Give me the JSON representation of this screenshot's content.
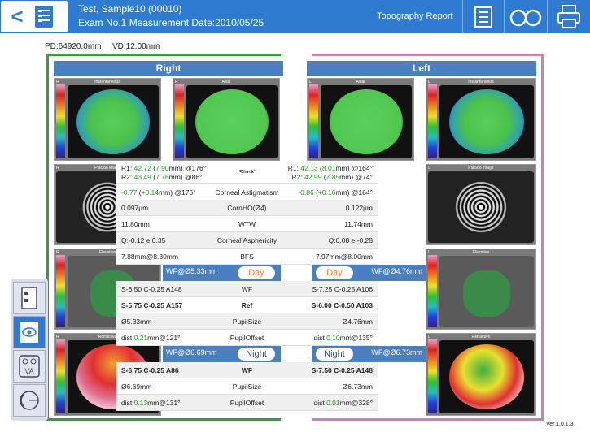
{
  "header": {
    "title_line1": "Test, Sample10 (00010)",
    "title_line2": "Exam No.1 Measurement Date:2010/05/25",
    "report_label": "Topography Report",
    "back_icon": "back-arrow",
    "toolbar_icons": [
      "print-report-icon",
      "glasses-icon",
      "printer-icon"
    ]
  },
  "info": {
    "pd": "PD:64920.0mm",
    "vd": "VD:12.00mm"
  },
  "bands": {
    "right": "Right",
    "left": "Left"
  },
  "maps": {
    "right_instant": {
      "label": "Instantaneous",
      "tag": "R"
    },
    "right_axial": {
      "label": "Axial",
      "tag": "R"
    },
    "left_axial": {
      "label": "Axial",
      "tag": "L"
    },
    "left_instant": {
      "label": "Instantaneous",
      "tag": "L"
    },
    "right_placido": {
      "label": "Placido image",
      "tag": "R"
    },
    "left_placido": {
      "label": "Placido image",
      "tag": "L"
    },
    "right_elev": {
      "label": "Elevation",
      "tag": "R"
    },
    "left_elev": {
      "label": "Elevation",
      "tag": "L"
    },
    "right_refr": {
      "label": "\"Refractive\"",
      "tag": "R"
    },
    "left_refr": {
      "label": "\"Refractive\"",
      "tag": "L"
    }
  },
  "rows": [
    {
      "l1": "R1: ",
      "lg1": "42.72",
      "lb1": " (",
      "lg2": "7.90",
      "lb2": "mm) @176°",
      "c": "SimK",
      "r1": "R1: ",
      "rg1": "42.13",
      "rb1": " (",
      "rg2": "8.01",
      "rb2": "mm) @164°"
    },
    {
      "l1": "R2: ",
      "lg1": "43.49",
      "lb1": " (",
      "lg2": "7.76",
      "lb2": "mm) @86°",
      "c": "",
      "r1": "R2: ",
      "rg1": "42.99",
      "rb1": " (",
      "rg2": "7.85",
      "rb2": "mm) @74°"
    },
    {
      "lg1": "-0.77",
      "lb1": " (",
      "lg2": "+0.14",
      "lb2": "mm) @176°",
      "c": "Corneal Astigmatism",
      "rg1": "-0.86",
      "rb1": " (",
      "rg2": "+0.16",
      "rb2": "mm) @164°"
    },
    {
      "l": "0.097µm",
      "c": "CornHO(Ø4)",
      "r": "0.122µm"
    },
    {
      "l": "11.80mm",
      "c": "WTW",
      "r": "11.74mm"
    },
    {
      "l": "Q:-0.12    e:0.35",
      "c": "Corneal Asphericity",
      "r": "Q:0.08    e:-0.28"
    },
    {
      "l": "7.88mm@8.30mm",
      "c": "BFS",
      "r": "7.97mm@8.00mm"
    },
    {
      "l": "S-6.50 C-0.25 A148",
      "c": "WF",
      "r": "S-7.25 C-0.25 A106"
    },
    {
      "l": "S-5.75 C-0.25 A157",
      "c": "Ref",
      "r": "S-6.00 C-0.50 A103",
      "bold": true
    },
    {
      "l": "Ø5.33mm",
      "c": "PupilSize",
      "r": "Ø4.76mm"
    },
    {
      "l": "dist ",
      "lg": "0.21",
      "lr": "mm@121°",
      "c": "PupilOffset",
      "r1": "dist ",
      "rg": "0.10",
      "rr": "mm@135°"
    },
    {
      "l": "S-6.75 C-0.25 A86",
      "c": "WF",
      "r": "S-7.50 C-0.25 A148",
      "bold": true
    },
    {
      "l": "Ø6.69mm",
      "c": "PupilSize",
      "r": "Ø6.73mm"
    },
    {
      "l": "dist ",
      "lg": "0.13",
      "lr": "mm@131°",
      "c": "PupilOffset",
      "r1": "dist ",
      "rg": "0.01",
      "rr": "mm@328°"
    }
  ],
  "day": {
    "left": "WF@Ø5.33mm",
    "right": "WF@Ø4.76mm",
    "pill": "Day"
  },
  "night": {
    "left": "WF@Ø6.69mm",
    "right": "WF@Ø6.73mm",
    "pill": "Night"
  },
  "sidebar_icons": [
    "report-list-icon",
    "eye-map-icon",
    "visual-acuity-icon",
    "eye-section-icon"
  ],
  "version": "Ver.1.0.1.3",
  "colors": {
    "header": "#2e7bd1",
    "band": "#4a7fc0",
    "right_frame": "#3a9a3a",
    "left_frame": "#d080b0"
  }
}
